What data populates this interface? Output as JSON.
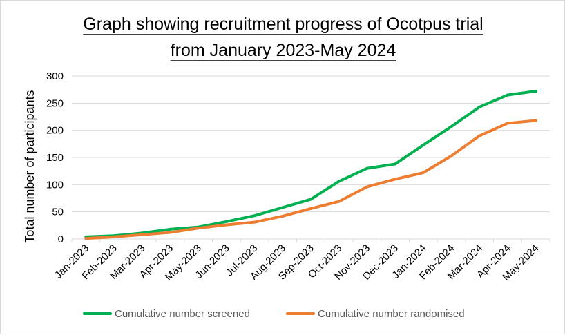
{
  "chart_data": {
    "type": "line",
    "title_lines": [
      "Graph showing recruitment progress of Ocotpus trial",
      "from January 2023-May 2024"
    ],
    "ylabel": "Total number of participants",
    "xlabel": "",
    "ylim": [
      0,
      300
    ],
    "yticks": [
      0,
      50,
      100,
      150,
      200,
      250,
      300
    ],
    "grid": true,
    "legend_position": "bottom",
    "categories": [
      "Jan-2023",
      "Feb-2023",
      "Mar-2023",
      "Apr-2023",
      "May-2023",
      "Jun-2023",
      "Jul-2023",
      "Aug-2023",
      "Sep-2023",
      "Oct-2023",
      "Nov-2023",
      "Dec-2023",
      "Jan-2024",
      "Feb-2024",
      "Mar-2024",
      "Apr-2024",
      "May-2024"
    ],
    "series": [
      {
        "name": "Cumulative number screened",
        "color": "#00b050",
        "values": [
          4,
          6,
          11,
          18,
          22,
          32,
          43,
          58,
          73,
          106,
          130,
          138,
          173,
          207,
          243,
          265,
          272
        ]
      },
      {
        "name": "Cumulative number randomised",
        "color": "#ed7d31",
        "values": [
          1,
          4,
          8,
          12,
          20,
          26,
          31,
          42,
          56,
          69,
          96,
          110,
          122,
          153,
          190,
          213,
          218
        ]
      }
    ]
  }
}
